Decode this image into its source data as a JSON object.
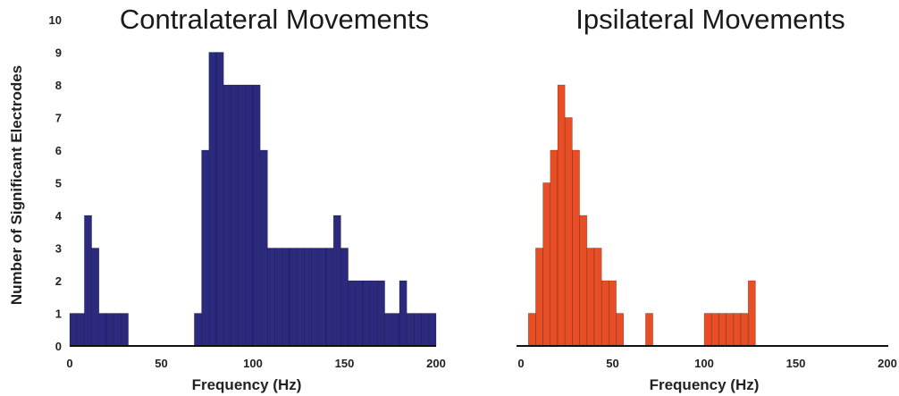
{
  "chart_data": [
    {
      "type": "bar",
      "title": "Contralateral Movements",
      "xlabel": "Frequency (Hz)",
      "ylabel": "Number of Significant Electrodes",
      "xlim": [
        0,
        200
      ],
      "ylim": [
        0,
        10
      ],
      "xticks": [
        "0",
        "50",
        "100",
        "150",
        "200"
      ],
      "yticks": [
        "0",
        "1",
        "2",
        "3",
        "4",
        "5",
        "6",
        "7",
        "8",
        "9",
        "10"
      ],
      "bin_width": 4,
      "bin_starts": [
        0,
        4,
        8,
        12,
        16,
        20,
        24,
        28,
        32,
        36,
        40,
        44,
        48,
        52,
        56,
        60,
        64,
        68,
        72,
        76,
        80,
        84,
        88,
        92,
        96,
        100,
        104,
        108,
        112,
        116,
        120,
        124,
        128,
        132,
        136,
        140,
        144,
        148,
        152,
        156,
        160,
        164,
        168,
        172,
        176,
        180,
        184,
        188,
        192,
        196
      ],
      "values": [
        1,
        1,
        4,
        3,
        1,
        1,
        1,
        1,
        0,
        0,
        0,
        0,
        0,
        0,
        0,
        0,
        0,
        1,
        6,
        9,
        9,
        8,
        8,
        8,
        8,
        8,
        6,
        3,
        3,
        3,
        3,
        3,
        3,
        3,
        3,
        3,
        4,
        3,
        2,
        2,
        2,
        2,
        2,
        1,
        1,
        2,
        1,
        1,
        1,
        1
      ],
      "color": "#2b2a7e"
    },
    {
      "type": "bar",
      "title": "Ipsilateral Movements",
      "xlabel": "Frequency (Hz)",
      "xlim": [
        0,
        200
      ],
      "ylim": [
        0,
        10
      ],
      "xticks": [
        "0",
        "50",
        "100",
        "150",
        "200"
      ],
      "bin_width": 4,
      "bin_starts": [
        0,
        4,
        8,
        12,
        16,
        20,
        24,
        28,
        32,
        36,
        40,
        44,
        48,
        52,
        56,
        60,
        64,
        68,
        72,
        76,
        80,
        84,
        88,
        92,
        96,
        100,
        104,
        108,
        112,
        116,
        120,
        124,
        128,
        132,
        136,
        140,
        144,
        148,
        152,
        156,
        160,
        164,
        168,
        172,
        176,
        180,
        184,
        188,
        192,
        196
      ],
      "values": [
        0,
        1,
        3,
        5,
        6,
        8,
        7,
        6,
        4,
        3,
        3,
        2,
        2,
        1,
        0,
        0,
        0,
        1,
        0,
        0,
        0,
        0,
        0,
        0,
        0,
        1,
        1,
        1,
        1,
        1,
        1,
        2,
        0,
        0,
        0,
        0,
        0,
        0,
        0,
        0,
        0,
        0,
        0,
        0,
        0,
        0,
        0,
        0,
        0,
        0
      ],
      "color": "#e84e26"
    }
  ]
}
